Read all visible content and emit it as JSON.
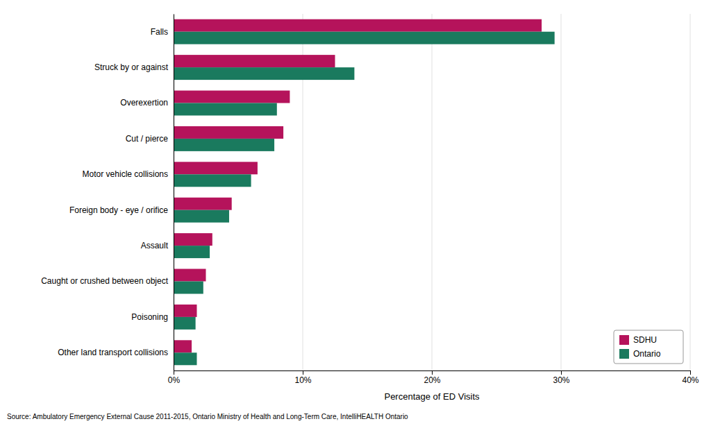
{
  "chart_data": {
    "type": "bar",
    "orientation": "horizontal",
    "categories": [
      "Falls",
      "Struck by or against",
      "Overexertion",
      "Cut / pierce",
      "Motor vehicle collisions",
      "Foreign body - eye / orifice",
      "Assault",
      "Caught or crushed between object",
      "Poisoning",
      "Other land transport collisions"
    ],
    "series": [
      {
        "name": "SDHU",
        "color": "#b5135b",
        "values": [
          28.5,
          12.5,
          9.0,
          8.5,
          6.5,
          4.5,
          3.0,
          2.5,
          1.8,
          1.4
        ]
      },
      {
        "name": "Ontario",
        "color": "#1a7a5e",
        "values": [
          29.5,
          14.0,
          8.0,
          7.8,
          6.0,
          4.3,
          2.8,
          2.3,
          1.7,
          1.8
        ]
      }
    ],
    "x_label": "Percentage of ED Visits",
    "xlim": [
      0,
      40
    ],
    "xticks": [
      {
        "value": 0,
        "label": "0%"
      },
      {
        "value": 10,
        "label": "10%"
      },
      {
        "value": 20,
        "label": "20%"
      },
      {
        "value": 30,
        "label": "30%"
      },
      {
        "value": 40,
        "label": "40%"
      }
    ],
    "grid": true,
    "legend": "lower right",
    "annotations": [
      "Source: Ambulatory Emergency External Cause 2011-2015, Ontario Ministry of Health and Long-Term Care, IntelliHEALTH Ontario"
    ]
  }
}
